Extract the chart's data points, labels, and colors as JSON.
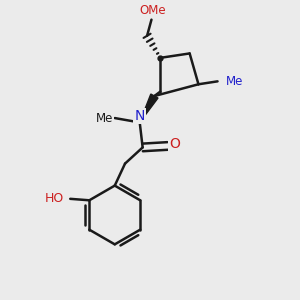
{
  "bg_color": "#ebebeb",
  "bond_color": "#1a1a1a",
  "bond_width": 1.8,
  "N_color": "#2020cc",
  "O_color": "#cc2020",
  "figsize": [
    3.0,
    3.0
  ],
  "dpi": 100,
  "xlim": [
    0,
    10
  ],
  "ylim": [
    0,
    10
  ]
}
